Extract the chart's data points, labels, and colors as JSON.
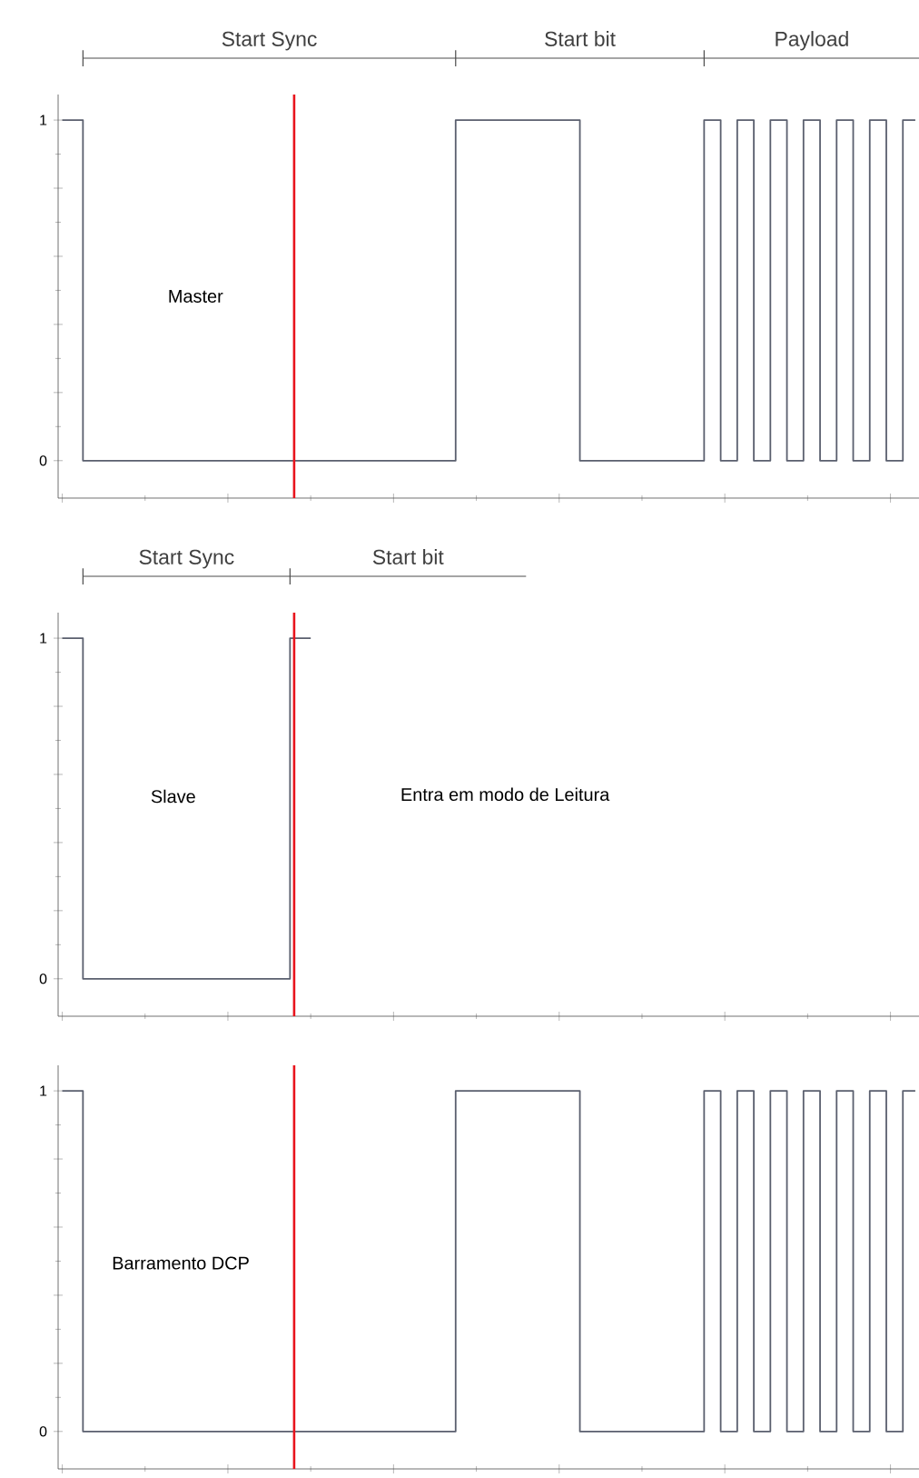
{
  "chart_data": [
    {
      "type": "step",
      "ylim": [
        -0.11,
        1.075
      ],
      "tick_labels": "y",
      "categories": [
        null,
        null,
        null,
        null,
        null,
        null,
        null,
        null,
        null,
        null,
        null,
        null,
        null,
        null,
        null,
        null,
        null,
        null,
        null,
        null,
        null,
        null,
        null,
        null,
        null,
        null,
        null,
        null,
        null,
        null,
        null,
        null,
        null,
        null,
        null,
        null,
        null,
        null,
        null,
        null,
        null,
        null,
        null,
        null,
        null,
        null,
        null,
        null,
        null,
        null,
        null,
        null,
        null,
        null,
        null,
        null,
        null,
        null,
        null,
        null,
        null,
        null,
        null,
        null,
        null,
        null,
        null,
        null,
        null,
        null,
        null,
        null,
        null,
        null,
        null,
        null,
        null,
        null,
        null,
        null,
        null,
        null,
        null,
        null,
        null,
        null,
        null,
        null,
        null,
        null,
        null,
        null,
        null,
        null,
        null,
        null,
        null,
        null,
        null,
        null,
        null,
        null,
        null,
        null
      ],
      "yticks": [
        {
          "value": 0,
          "label": "0"
        },
        {
          "value": 0.2,
          "label": null
        },
        {
          "value": 0.4,
          "label": null
        },
        {
          "value": 0.6,
          "label": null
        },
        {
          "value": 0.8,
          "label": null
        },
        {
          "value": 1,
          "label": "1"
        }
      ],
      "series": [
        {
          "name": "Master",
          "color": "#5a5f6e",
          "values": [
            1,
            1,
            1,
            0,
            0,
            0,
            0,
            0,
            0,
            0,
            0,
            0,
            0,
            0,
            0,
            0,
            0,
            0,
            0,
            0,
            0,
            0,
            0,
            0,
            0,
            0,
            0,
            0,
            0,
            0,
            0,
            0,
            0,
            0,
            0,
            0,
            0,
            0,
            0,
            0,
            0,
            0,
            0,
            0,
            0,
            0,
            0,
            0,
            1,
            1,
            1,
            1,
            1,
            1,
            1,
            1,
            1,
            1,
            1,
            1,
            1,
            1,
            1,
            0,
            0,
            0,
            0,
            0,
            0,
            0,
            0,
            0,
            0,
            0,
            0,
            0,
            0,
            0,
            1,
            1,
            0,
            0,
            1,
            1,
            0,
            0,
            1,
            1,
            0,
            0,
            1,
            1,
            0,
            0,
            1,
            1,
            0,
            0,
            1,
            1,
            0,
            0,
            1,
            1
          ]
        }
      ],
      "annotations": [
        "Start Sync",
        "Start bit",
        "Payload"
      ]
    },
    {
      "type": "step",
      "ylim": [
        -0.11,
        1.075
      ],
      "tick_labels": "y",
      "categories": [
        null,
        null,
        null,
        null,
        null,
        null,
        null,
        null,
        null,
        null,
        null,
        null,
        null,
        null,
        null,
        null,
        null,
        null,
        null,
        null,
        null,
        null,
        null,
        null,
        null,
        null,
        null,
        null,
        null,
        null,
        null,
        null,
        null,
        null,
        null,
        null,
        null,
        null,
        null,
        null,
        null,
        null,
        null,
        null,
        null,
        null,
        null,
        null,
        null,
        null,
        null,
        null,
        null,
        null,
        null,
        null,
        null,
        null,
        null,
        null,
        null,
        null,
        null,
        null,
        null,
        null,
        null,
        null,
        null,
        null,
        null,
        null,
        null,
        null,
        null,
        null,
        null,
        null,
        null,
        null,
        null,
        null,
        null,
        null,
        null,
        null,
        null,
        null,
        null,
        null,
        null,
        null,
        null,
        null,
        null,
        null,
        null,
        null,
        null,
        null,
        null,
        null,
        null,
        null
      ],
      "yticks": [
        {
          "value": 0,
          "label": "0"
        },
        {
          "value": 0.2,
          "label": null
        },
        {
          "value": 0.4,
          "label": null
        },
        {
          "value": 0.6,
          "label": null
        },
        {
          "value": 0.8,
          "label": null
        },
        {
          "value": 1,
          "label": "1"
        }
      ],
      "series": [
        {
          "name": "Slave",
          "color": "#5a5f6e",
          "values": [
            1,
            1,
            1,
            0,
            0,
            0,
            0,
            0,
            0,
            0,
            0,
            0,
            0,
            0,
            0,
            0,
            0,
            0,
            0,
            0,
            0,
            0,
            0,
            0,
            0,
            0,
            0,
            0,
            1,
            1,
            1,
            null,
            null,
            null,
            null,
            null,
            null,
            null,
            null,
            null,
            null,
            null,
            null,
            null,
            null,
            null,
            null,
            null,
            null,
            null,
            null,
            null,
            null,
            null,
            null,
            null,
            null,
            null,
            null,
            null,
            null,
            null,
            null,
            null,
            null,
            null,
            null,
            null,
            null,
            null,
            null,
            null,
            null,
            null,
            null,
            null,
            null,
            null,
            null,
            null,
            null,
            null,
            null,
            null,
            null,
            null,
            null,
            null,
            null,
            null,
            null,
            null,
            null,
            null,
            null,
            null,
            null,
            null,
            null,
            null,
            null,
            null,
            null,
            null
          ]
        }
      ],
      "annotations": [
        "Start Sync",
        "Start bit",
        "Entra em modo de Leitura"
      ]
    },
    {
      "type": "step",
      "ylim": [
        -0.11,
        1.075
      ],
      "tick_labels": "y",
      "categories": [
        null,
        null,
        null,
        null,
        null,
        null,
        null,
        null,
        null,
        null,
        null,
        null,
        null,
        null,
        null,
        null,
        null,
        null,
        null,
        null,
        null,
        null,
        null,
        null,
        null,
        null,
        null,
        null,
        null,
        null,
        null,
        null,
        null,
        null,
        null,
        null,
        null,
        null,
        null,
        null,
        null,
        null,
        null,
        null,
        null,
        null,
        null,
        null,
        null,
        null,
        null,
        null,
        null,
        null,
        null,
        null,
        null,
        null,
        null,
        null,
        null,
        null,
        null,
        null,
        null,
        null,
        null,
        null,
        null,
        null,
        null,
        null,
        null,
        null,
        null,
        null,
        null,
        null,
        null,
        null,
        null,
        null,
        null,
        null,
        null,
        null,
        null,
        null,
        null,
        null,
        null,
        null,
        null,
        null,
        null,
        null,
        null,
        null,
        null,
        null,
        null,
        null,
        null,
        null
      ],
      "yticks": [
        {
          "value": 0,
          "label": "0"
        },
        {
          "value": 0.2,
          "label": null
        },
        {
          "value": 0.4,
          "label": null
        },
        {
          "value": 0.6,
          "label": null
        },
        {
          "value": 0.8,
          "label": null
        },
        {
          "value": 1,
          "label": "1"
        }
      ],
      "series": [
        {
          "name": "Barramento DCP",
          "color": "#5a5f6e",
          "values": [
            1,
            1,
            1,
            0,
            0,
            0,
            0,
            0,
            0,
            0,
            0,
            0,
            0,
            0,
            0,
            0,
            0,
            0,
            0,
            0,
            0,
            0,
            0,
            0,
            0,
            0,
            0,
            0,
            0,
            0,
            0,
            0,
            0,
            0,
            0,
            0,
            0,
            0,
            0,
            0,
            0,
            0,
            0,
            0,
            0,
            0,
            0,
            0,
            1,
            1,
            1,
            1,
            1,
            1,
            1,
            1,
            1,
            1,
            1,
            1,
            1,
            1,
            1,
            0,
            0,
            0,
            0,
            0,
            0,
            0,
            0,
            0,
            0,
            0,
            0,
            0,
            0,
            0,
            1,
            1,
            0,
            0,
            1,
            1,
            0,
            0,
            1,
            1,
            0,
            0,
            1,
            1,
            0,
            0,
            1,
            1,
            0,
            0,
            1,
            1,
            0,
            0,
            1,
            1
          ]
        }
      ]
    }
  ]
}
